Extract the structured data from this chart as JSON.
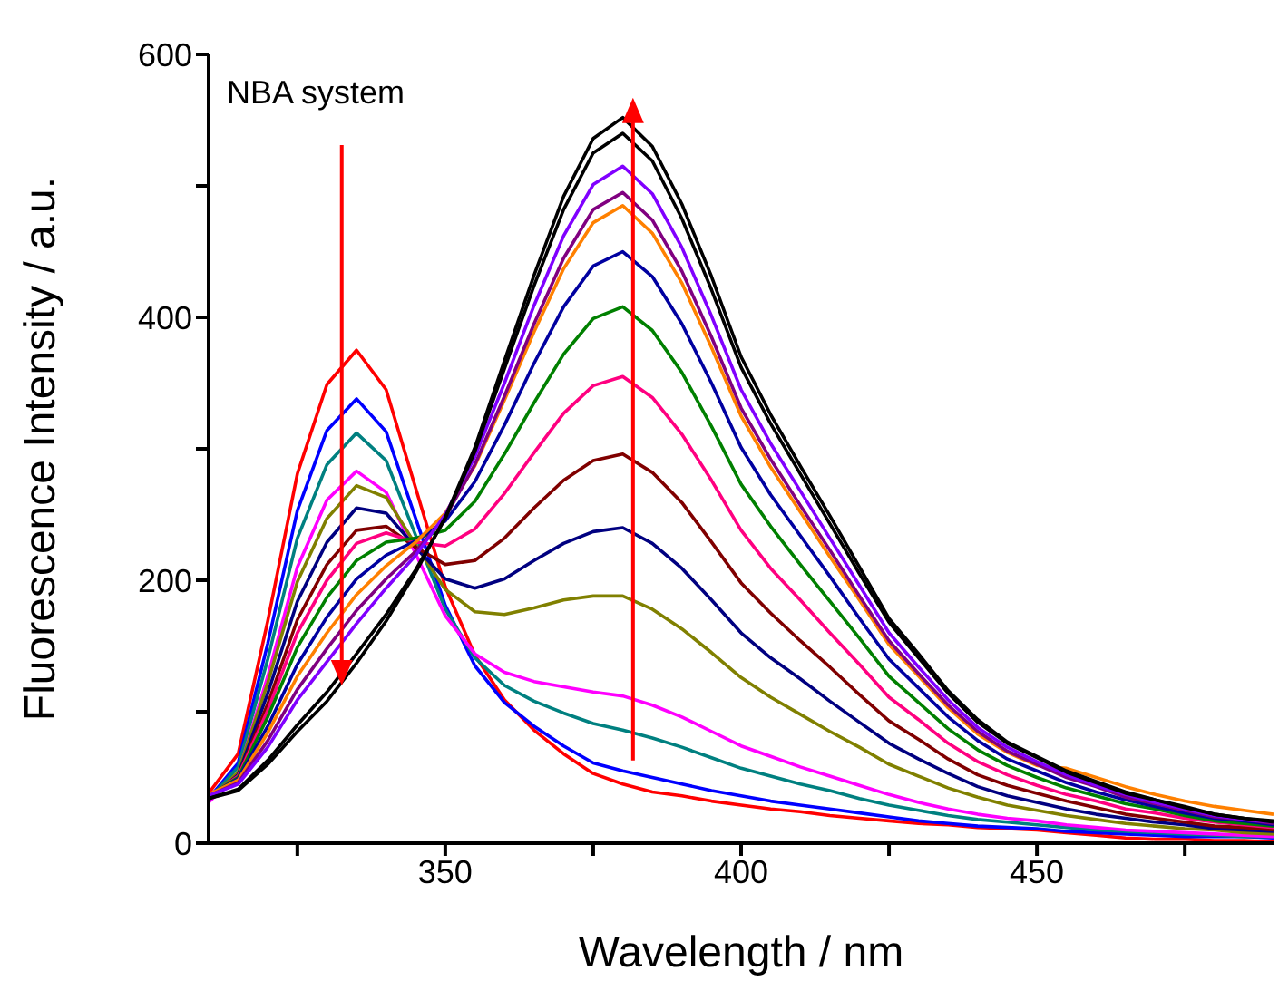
{
  "chart_data": {
    "type": "line",
    "xlabel": "Wavelength / nm",
    "ylabel": "Fluorescence Intensity / a.u.",
    "annotations": [
      "NBA system"
    ],
    "xlim": [
      310,
      490
    ],
    "ylim": [
      0,
      600
    ],
    "xticks": [
      {
        "value": 325,
        "label": null
      },
      350,
      {
        "value": 375,
        "label": null
      },
      400,
      {
        "value": 425,
        "label": null
      },
      450,
      {
        "value": 475,
        "label": null
      }
    ],
    "yticks": [
      0,
      {
        "value": 100,
        "label": null
      },
      200,
      {
        "value": 300,
        "label": null
      },
      400,
      {
        "value": 500,
        "label": null
      },
      600
    ],
    "grid": false,
    "marker": "none",
    "line_style": "solid",
    "x": [
      310,
      315,
      320,
      325,
      330,
      335,
      340,
      345,
      350,
      355,
      360,
      365,
      370,
      375,
      380,
      385,
      390,
      395,
      400,
      405,
      410,
      415,
      420,
      425,
      430,
      435,
      440,
      445,
      450,
      455,
      460,
      465,
      470,
      475,
      480,
      485,
      490
    ],
    "series": [
      {
        "color": "#ff0000",
        "values": [
          38,
          68,
          169,
          281,
          349,
          375,
          345,
          270,
          195,
          143,
          109,
          86,
          68,
          53,
          45,
          39,
          36,
          32,
          29,
          26,
          24,
          21,
          19,
          17,
          15,
          14,
          12,
          11,
          10,
          8,
          6,
          4,
          3,
          3,
          2,
          2,
          1
        ]
      },
      {
        "color": "#0000ff",
        "values": [
          34,
          61,
          152,
          253,
          314,
          338,
          313,
          247,
          181,
          135,
          107,
          89,
          74,
          61,
          55,
          50,
          45,
          40,
          36,
          32,
          29,
          26,
          23,
          20,
          17,
          15,
          13,
          12,
          11,
          9,
          8,
          7,
          6,
          5,
          5,
          5,
          4
        ]
      },
      {
        "color": "#008080",
        "values": [
          33,
          58,
          140,
          232,
          288,
          312,
          291,
          234,
          178,
          141,
          120,
          108,
          99,
          91,
          86,
          80,
          73,
          65,
          57,
          51,
          45,
          40,
          34,
          29,
          25,
          21,
          18,
          16,
          14,
          12,
          10,
          9,
          8,
          7,
          6,
          5,
          5
        ]
      },
      {
        "color": "#ff00ff",
        "values": [
          31,
          53,
          127,
          210,
          261,
          283,
          267,
          220,
          173,
          144,
          130,
          123,
          119,
          115,
          112,
          105,
          96,
          85,
          74,
          66,
          58,
          51,
          44,
          37,
          31,
          26,
          22,
          19,
          17,
          14,
          12,
          10,
          9,
          8,
          7,
          6,
          5
        ]
      },
      {
        "color": "#808000",
        "values": [
          33,
          54,
          122,
          199,
          247,
          272,
          263,
          227,
          193,
          176,
          174,
          179,
          185,
          188,
          188,
          178,
          163,
          145,
          126,
          111,
          98,
          85,
          73,
          60,
          51,
          42,
          35,
          29,
          25,
          21,
          18,
          15,
          13,
          11,
          10,
          8,
          7
        ]
      },
      {
        "color": "#000080",
        "values": [
          33,
          52,
          114,
          184,
          229,
          255,
          251,
          225,
          201,
          194,
          201,
          215,
          228,
          237,
          240,
          228,
          209,
          185,
          160,
          141,
          125,
          108,
          92,
          76,
          64,
          53,
          43,
          36,
          31,
          26,
          22,
          19,
          16,
          14,
          11,
          10,
          9
        ]
      },
      {
        "color": "#800000",
        "values": [
          34,
          51,
          106,
          170,
          212,
          238,
          241,
          225,
          212,
          215,
          232,
          255,
          276,
          291,
          296,
          282,
          259,
          229,
          198,
          175,
          154,
          134,
          113,
          93,
          79,
          64,
          52,
          44,
          38,
          32,
          27,
          22,
          19,
          16,
          13,
          12,
          10
        ]
      },
      {
        "color": "#ff0080",
        "values": [
          35,
          51,
          101,
          160,
          200,
          228,
          236,
          229,
          226,
          239,
          266,
          297,
          327,
          348,
          355,
          339,
          311,
          276,
          238,
          209,
          185,
          160,
          136,
          111,
          94,
          76,
          62,
          52,
          44,
          37,
          32,
          26,
          23,
          19,
          16,
          14,
          12
        ]
      },
      {
        "color": "#008000",
        "values": [
          36,
          50,
          96,
          149,
          187,
          215,
          229,
          232,
          238,
          260,
          296,
          335,
          372,
          399,
          408,
          390,
          358,
          317,
          273,
          241,
          212,
          184,
          156,
          127,
          107,
          87,
          71,
          59,
          50,
          42,
          36,
          30,
          26,
          21,
          17,
          15,
          13
        ]
      },
      {
        "color": "#0000a0",
        "values": [
          36,
          49,
          89,
          136,
          172,
          201,
          219,
          230,
          245,
          275,
          318,
          365,
          408,
          439,
          450,
          431,
          395,
          350,
          301,
          265,
          234,
          203,
          171,
          140,
          118,
          96,
          78,
          64,
          55,
          46,
          39,
          33,
          28,
          23,
          19,
          17,
          14
        ]
      },
      {
        "color": "#ff8000",
        "values": [
          37,
          48,
          84,
          127,
          160,
          189,
          211,
          229,
          251,
          287,
          337,
          389,
          437,
          472,
          485,
          464,
          426,
          377,
          325,
          286,
          252,
          218,
          185,
          151,
          127,
          103,
          83,
          69,
          59,
          57,
          50,
          43,
          37,
          32,
          28,
          25,
          22
        ]
      },
      {
        "color": "#800080",
        "values": [
          36,
          46,
          78,
          117,
          148,
          177,
          201,
          222,
          248,
          288,
          340,
          395,
          445,
          482,
          495,
          474,
          435,
          385,
          331,
          292,
          257,
          223,
          188,
          154,
          129,
          105,
          85,
          70,
          60,
          50,
          43,
          35,
          30,
          25,
          20,
          18,
          15
        ]
      },
      {
        "color": "#8000ff",
        "values": [
          36,
          45,
          73,
          109,
          138,
          167,
          194,
          219,
          250,
          294,
          350,
          409,
          462,
          501,
          515,
          494,
          453,
          401,
          345,
          304,
          268,
          232,
          196,
          160,
          134,
          109,
          88,
          73,
          62,
          52,
          44,
          37,
          31,
          26,
          21,
          18,
          16
        ]
      },
      {
        "color": "#000000",
        "values": [
          34,
          41,
          63,
          90,
          115,
          144,
          174,
          208,
          247,
          298,
          361,
          424,
          482,
          525,
          540,
          519,
          475,
          421,
          362,
          319,
          281,
          243,
          205,
          168,
          141,
          114,
          92,
          76,
          65,
          54,
          46,
          38,
          33,
          27,
          22,
          19,
          16
        ]
      },
      {
        "color": "#000000",
        "values": [
          34,
          40,
          60,
          85,
          108,
          137,
          169,
          206,
          248,
          301,
          367,
          432,
          492,
          536,
          552,
          530,
          486,
          431,
          370,
          326,
          287,
          249,
          210,
          171,
          144,
          116,
          94,
          77,
          66,
          55,
          47,
          39,
          33,
          28,
          22,
          19,
          17
        ]
      }
    ]
  }
}
